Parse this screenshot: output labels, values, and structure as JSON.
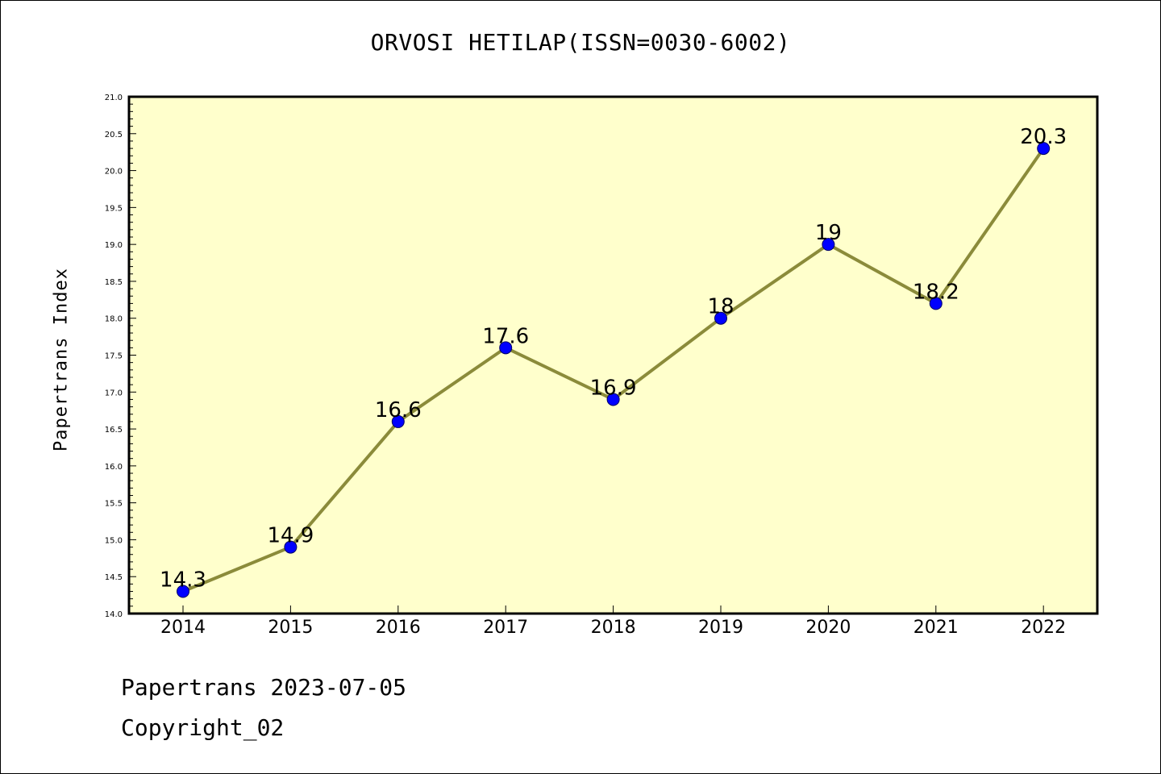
{
  "colors": {
    "plot_background": "#ffffcc",
    "line": "#8b8b3a",
    "marker_fill": "#0000ff",
    "marker_stroke": "#000066"
  },
  "chart_data": {
    "type": "line",
    "title": "ORVOSI HETILAP(ISSN=0030-6002)",
    "ylabel": "Papertrans Index",
    "xlabel": "",
    "categories": [
      "2014",
      "2015",
      "2016",
      "2017",
      "2018",
      "2019",
      "2020",
      "2021",
      "2022"
    ],
    "values": [
      14.3,
      14.9,
      16.6,
      17.6,
      16.9,
      18.0,
      19.0,
      18.2,
      20.3
    ],
    "data_labels": [
      "14.3",
      "14.9",
      "16.6",
      "17.6",
      "16.9",
      "18",
      "19",
      "18.2",
      "20.3"
    ],
    "ylim": [
      14.0,
      21.0
    ],
    "yticks": [
      "14.0",
      "14.5",
      "15.0",
      "15.5",
      "16.0",
      "16.5",
      "17.0",
      "17.5",
      "18.0",
      "18.5",
      "19.0",
      "19.5",
      "20.0",
      "20.5",
      "21.0"
    ],
    "grid": false,
    "legend": "none"
  },
  "footer": {
    "line1": "Papertrans 2023-07-05",
    "line2": "Copyright_02"
  }
}
